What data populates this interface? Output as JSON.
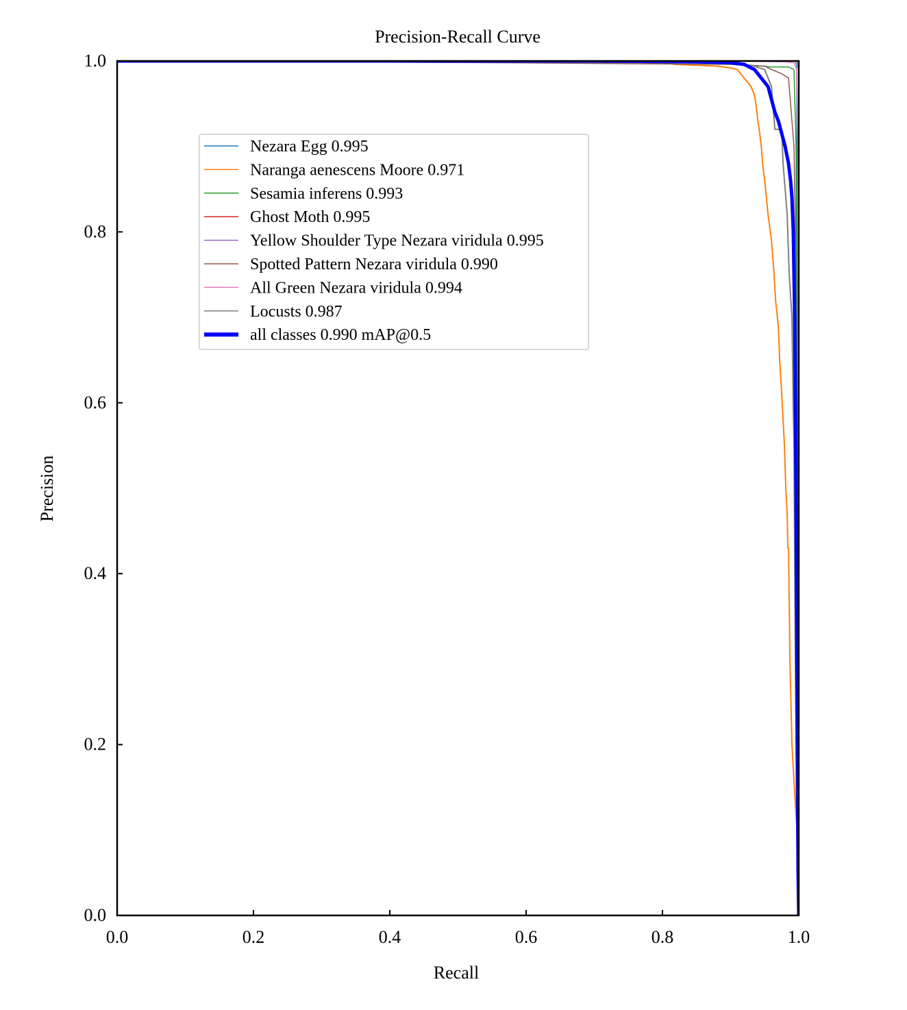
{
  "chart_data": {
    "type": "line",
    "title": "Precision-Recall Curve",
    "xlabel": "Recall",
    "ylabel": "Precision",
    "xlim": [
      0.0,
      1.0
    ],
    "ylim": [
      0.0,
      1.0
    ],
    "xticks": [
      "0.0",
      "0.2",
      "0.4",
      "0.6",
      "0.8",
      "1.0"
    ],
    "yticks": [
      "0.0",
      "0.2",
      "0.4",
      "0.6",
      "0.8",
      "1.0"
    ],
    "grid": false,
    "legend_position": "upper-left inside",
    "series": [
      {
        "name": "Nezara Egg 0.995",
        "color": "#1f77b4",
        "width": 1.5,
        "x": [
          0.0,
          0.5,
          0.95,
          0.995,
          0.997,
          1.0
        ],
        "y": [
          1.0,
          1.0,
          1.0,
          1.0,
          0.995,
          0.0
        ]
      },
      {
        "name": "Naranga aenescens Moore 0.971",
        "color": "#ff7f0e",
        "width": 2,
        "x": [
          0.0,
          0.3,
          0.6,
          0.8,
          0.82,
          0.85,
          0.88,
          0.9,
          0.91,
          0.915,
          0.92,
          0.925,
          0.93,
          0.935,
          0.937,
          0.94,
          0.942,
          0.945,
          0.947,
          0.95,
          0.955,
          0.96,
          0.963,
          0.966,
          0.97,
          0.972,
          0.975,
          0.977,
          0.979,
          0.981,
          0.983,
          0.984,
          0.985,
          0.987,
          0.99,
          0.995,
          1.0
        ],
        "y": [
          1.0,
          1.0,
          1.0,
          0.998,
          0.996,
          0.995,
          0.994,
          0.992,
          0.99,
          0.985,
          0.98,
          0.975,
          0.97,
          0.96,
          0.95,
          0.93,
          0.92,
          0.9,
          0.88,
          0.86,
          0.82,
          0.79,
          0.76,
          0.72,
          0.69,
          0.65,
          0.61,
          0.58,
          0.55,
          0.5,
          0.47,
          0.43,
          0.43,
          0.3,
          0.2,
          0.13,
          0.07
        ]
      },
      {
        "name": "Sesamia inferens 0.993",
        "color": "#2ca02c",
        "width": 1.5,
        "x": [
          0.0,
          0.6,
          0.9,
          0.93,
          0.96,
          0.985,
          0.993,
          0.996,
          1.0
        ],
        "y": [
          1.0,
          1.0,
          0.998,
          0.995,
          0.993,
          0.993,
          0.99,
          0.9,
          0.0
        ]
      },
      {
        "name": "Ghost Moth 0.995",
        "color": "#d62728",
        "width": 1.5,
        "x": [
          0.0,
          0.6,
          0.9,
          0.98,
          0.998,
          1.0,
          1.0
        ],
        "y": [
          1.0,
          1.0,
          1.0,
          1.0,
          1.0,
          0.99,
          0.0
        ]
      },
      {
        "name": "Yellow Shoulder Type Nezara viridula 0.995",
        "color": "#9467bd",
        "width": 1.5,
        "x": [
          0.0,
          0.6,
          0.9,
          0.98,
          0.998,
          1.0,
          1.0
        ],
        "y": [
          1.0,
          1.0,
          1.0,
          1.0,
          1.0,
          0.995,
          0.0
        ]
      },
      {
        "name": "Spotted Pattern Nezara viridula 0.990",
        "color": "#8c564b",
        "width": 1.5,
        "x": [
          0.0,
          0.55,
          0.9,
          0.95,
          0.96,
          0.975,
          0.985,
          0.99,
          0.993,
          0.995,
          1.0
        ],
        "y": [
          1.0,
          0.998,
          0.996,
          0.994,
          0.99,
          0.985,
          0.98,
          0.93,
          0.9,
          0.8,
          0.0
        ]
      },
      {
        "name": "All Green Nezara viridula 0.994",
        "color": "#e377c2",
        "width": 1.5,
        "x": [
          0.0,
          0.6,
          0.9,
          0.98,
          0.993,
          0.997,
          1.0,
          1.0
        ],
        "y": [
          1.0,
          1.0,
          1.0,
          0.999,
          0.998,
          0.99,
          0.82,
          0.0
        ]
      },
      {
        "name": "Locusts 0.987",
        "color": "#7f7f7f",
        "width": 2,
        "x": [
          0.0,
          0.5,
          0.85,
          0.93,
          0.95,
          0.96,
          0.963,
          0.965,
          0.975,
          0.977,
          0.98,
          0.983,
          0.986,
          0.99,
          0.992,
          0.993,
          0.995,
          0.997,
          1.0
        ],
        "y": [
          1.0,
          0.999,
          0.998,
          0.995,
          0.99,
          0.97,
          0.94,
          0.92,
          0.92,
          0.88,
          0.85,
          0.82,
          0.75,
          0.7,
          0.59,
          0.55,
          0.3,
          0.1,
          0.0
        ]
      },
      {
        "name": "all classes 0.990 mAP@0.5",
        "color": "#0000ff",
        "width": 5,
        "x": [
          0.0,
          0.4,
          0.7,
          0.85,
          0.9,
          0.92,
          0.935,
          0.945,
          0.955,
          0.96,
          0.965,
          0.97,
          0.975,
          0.98,
          0.985,
          0.988,
          0.99,
          0.992,
          0.993,
          0.994,
          0.995,
          0.996,
          0.997,
          0.998,
          0.999,
          1.0
        ],
        "y": [
          1.0,
          1.0,
          1.0,
          0.999,
          0.998,
          0.996,
          0.99,
          0.98,
          0.97,
          0.955,
          0.94,
          0.93,
          0.915,
          0.9,
          0.88,
          0.86,
          0.84,
          0.8,
          0.75,
          0.7,
          0.6,
          0.5,
          0.35,
          0.2,
          0.05,
          0.0
        ]
      }
    ]
  }
}
